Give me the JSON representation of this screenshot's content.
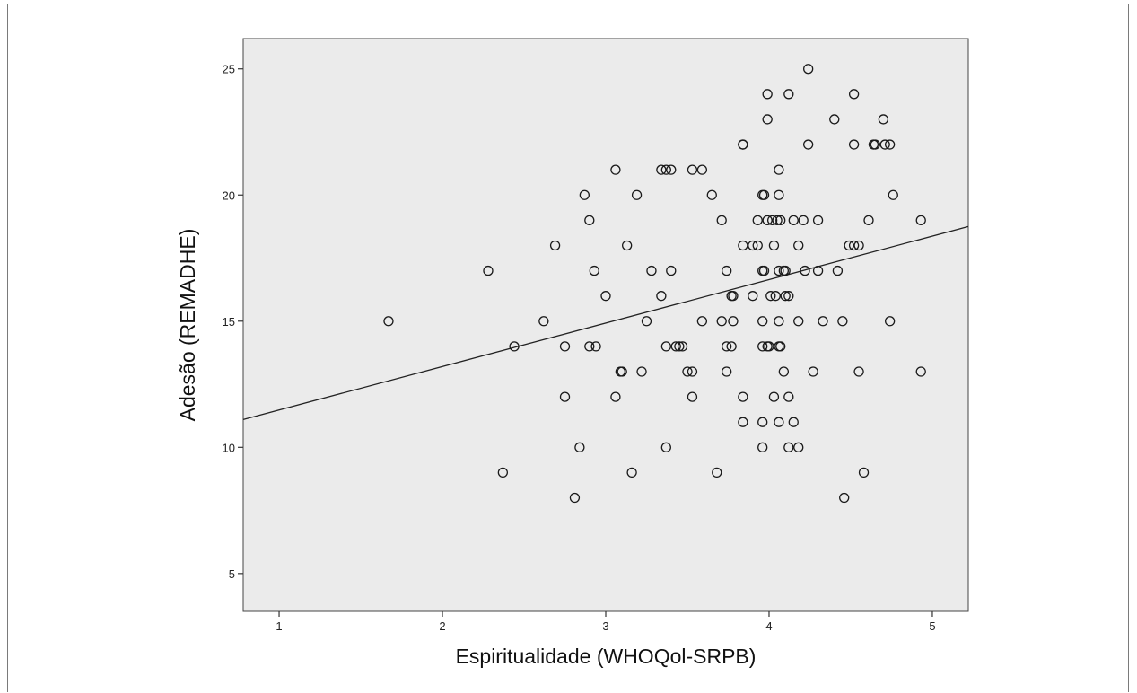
{
  "colors": {
    "plot_background": "#ebebeb",
    "marker_stroke": "#1a1a1a",
    "fit_line": "#222222",
    "frame_border": "#7a7a7a"
  },
  "chart_data": {
    "type": "scatter",
    "xlabel": "Espiritualidade (WHOQol-SRPB)",
    "ylabel": "Adesão (REMADHE)",
    "xlim": [
      0.78,
      5.22
    ],
    "ylim": [
      3.5,
      26.2
    ],
    "xticks": [
      1,
      2,
      3,
      4,
      5
    ],
    "yticks": [
      5,
      10,
      15,
      20,
      25
    ],
    "grid": false,
    "marker": "open-circle",
    "fit_line": {
      "x": [
        0.78,
        5.22
      ],
      "y": [
        11.1,
        18.75
      ]
    },
    "points": [
      [
        1.67,
        15
      ],
      [
        2.28,
        17
      ],
      [
        2.37,
        9
      ],
      [
        2.44,
        14
      ],
      [
        2.62,
        15
      ],
      [
        2.69,
        18
      ],
      [
        2.75,
        14
      ],
      [
        2.75,
        12
      ],
      [
        2.81,
        8
      ],
      [
        2.84,
        10
      ],
      [
        2.87,
        20
      ],
      [
        2.9,
        19
      ],
      [
        2.9,
        14
      ],
      [
        2.93,
        17
      ],
      [
        2.94,
        14
      ],
      [
        3.0,
        16
      ],
      [
        3.06,
        21
      ],
      [
        3.06,
        12
      ],
      [
        3.09,
        13
      ],
      [
        3.1,
        13
      ],
      [
        3.13,
        18
      ],
      [
        3.16,
        9
      ],
      [
        3.19,
        20
      ],
      [
        3.22,
        13
      ],
      [
        3.25,
        15
      ],
      [
        3.28,
        17
      ],
      [
        3.34,
        21
      ],
      [
        3.34,
        16
      ],
      [
        3.37,
        21
      ],
      [
        3.37,
        14
      ],
      [
        3.37,
        10
      ],
      [
        3.4,
        21
      ],
      [
        3.4,
        17
      ],
      [
        3.43,
        14
      ],
      [
        3.45,
        14
      ],
      [
        3.47,
        14
      ],
      [
        3.5,
        13
      ],
      [
        3.53,
        21
      ],
      [
        3.53,
        13
      ],
      [
        3.53,
        12
      ],
      [
        3.59,
        21
      ],
      [
        3.59,
        15
      ],
      [
        3.65,
        20
      ],
      [
        3.68,
        9
      ],
      [
        3.71,
        19
      ],
      [
        3.71,
        15
      ],
      [
        3.74,
        17
      ],
      [
        3.74,
        14
      ],
      [
        3.74,
        13
      ],
      [
        3.77,
        16
      ],
      [
        3.78,
        16
      ],
      [
        3.77,
        14
      ],
      [
        3.78,
        15
      ],
      [
        3.84,
        22
      ],
      [
        3.84,
        22
      ],
      [
        3.84,
        18
      ],
      [
        3.84,
        12
      ],
      [
        3.84,
        11
      ],
      [
        3.9,
        18
      ],
      [
        3.9,
        16
      ],
      [
        3.93,
        19
      ],
      [
        3.93,
        18
      ],
      [
        3.96,
        20
      ],
      [
        3.97,
        20
      ],
      [
        3.96,
        17
      ],
      [
        3.97,
        17
      ],
      [
        3.96,
        15
      ],
      [
        3.96,
        14
      ],
      [
        3.96,
        11
      ],
      [
        3.96,
        10
      ],
      [
        3.99,
        24
      ],
      [
        3.99,
        23
      ],
      [
        3.99,
        19
      ],
      [
        3.99,
        14
      ],
      [
        4.0,
        14
      ],
      [
        4.01,
        16
      ],
      [
        4.02,
        19
      ],
      [
        4.03,
        18
      ],
      [
        4.03,
        12
      ],
      [
        4.04,
        16
      ],
      [
        4.05,
        19
      ],
      [
        4.06,
        21
      ],
      [
        4.06,
        20
      ],
      [
        4.06,
        17
      ],
      [
        4.06,
        15
      ],
      [
        4.06,
        14
      ],
      [
        4.07,
        14
      ],
      [
        4.06,
        11
      ],
      [
        4.07,
        19
      ],
      [
        4.09,
        17
      ],
      [
        4.1,
        17
      ],
      [
        4.1,
        16
      ],
      [
        4.09,
        13
      ],
      [
        4.12,
        24
      ],
      [
        4.12,
        16
      ],
      [
        4.12,
        12
      ],
      [
        4.12,
        10
      ],
      [
        4.15,
        19
      ],
      [
        4.15,
        11
      ],
      [
        4.18,
        18
      ],
      [
        4.18,
        15
      ],
      [
        4.18,
        10
      ],
      [
        4.21,
        19
      ],
      [
        4.22,
        17
      ],
      [
        4.24,
        25
      ],
      [
        4.24,
        22
      ],
      [
        4.27,
        13
      ],
      [
        4.3,
        19
      ],
      [
        4.3,
        17
      ],
      [
        4.33,
        15
      ],
      [
        4.4,
        23
      ],
      [
        4.42,
        17
      ],
      [
        4.45,
        15
      ],
      [
        4.46,
        8
      ],
      [
        4.49,
        18
      ],
      [
        4.52,
        24
      ],
      [
        4.52,
        22
      ],
      [
        4.52,
        18
      ],
      [
        4.55,
        18
      ],
      [
        4.55,
        13
      ],
      [
        4.58,
        9
      ],
      [
        4.61,
        19
      ],
      [
        4.64,
        22
      ],
      [
        4.65,
        22
      ],
      [
        4.7,
        23
      ],
      [
        4.71,
        22
      ],
      [
        4.74,
        22
      ],
      [
        4.74,
        15
      ],
      [
        4.76,
        20
      ],
      [
        4.93,
        19
      ],
      [
        4.93,
        13
      ]
    ]
  }
}
